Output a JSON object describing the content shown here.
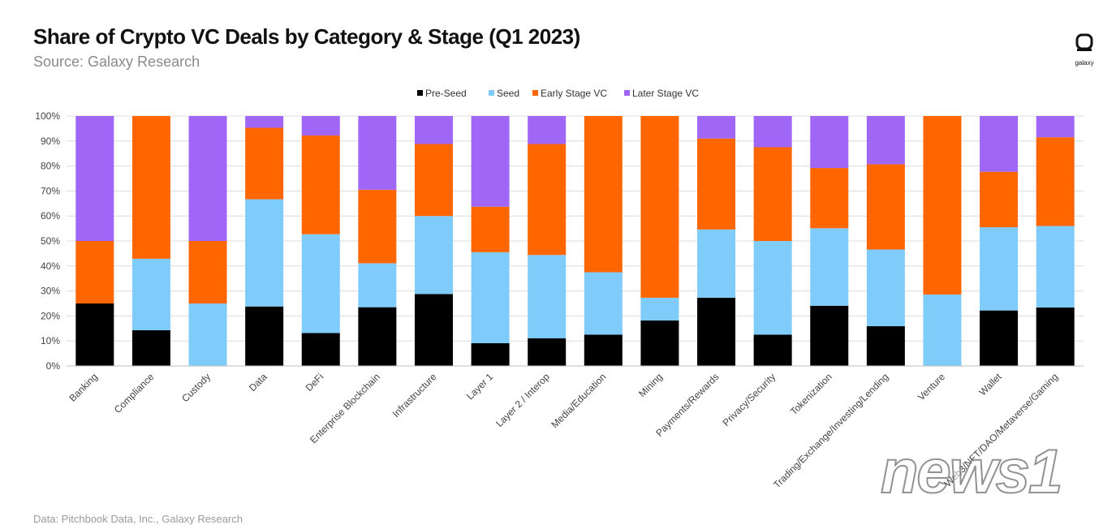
{
  "header": {
    "title": "Share of Crypto VC Deals by Category & Stage (Q1 2023)",
    "subtitle": "Source: Galaxy Research",
    "logo_text": "galaxy"
  },
  "footer": {
    "note": "Data: Pitchbook Data, Inc., Galaxy Research"
  },
  "watermark": {
    "text": "news1"
  },
  "colors": {
    "pre_seed": "#000000",
    "seed": "#7fcbfa",
    "early_stage": "#ff6600",
    "later_stage": "#a066f5",
    "grid": "#dcdcdc",
    "axis_text": "#444444"
  },
  "chart_data": {
    "type": "bar",
    "stacked": true,
    "title": "Share of Crypto VC Deals by Category & Stage (Q1 2023)",
    "xlabel": "",
    "ylabel": "",
    "ylim": [
      0,
      100
    ],
    "yticks": [
      "0%",
      "10%",
      "20%",
      "30%",
      "40%",
      "50%",
      "60%",
      "70%",
      "80%",
      "90%",
      "100%"
    ],
    "grid": true,
    "legend_position": "top-center",
    "categories": [
      "Banking",
      "Compliance",
      "Custody",
      "Data",
      "DeFi",
      "Enterprise Blockchain",
      "Infrastructure",
      "Layer 1",
      "Layer 2 / Interop",
      "Media/Education",
      "Mining",
      "Payments/Rewards",
      "Privacy/Security",
      "Tokenization",
      "Trading/Exchange/Investing/Lending",
      "Venture",
      "Wallet",
      "Web3/NFT/DAO/Metaverse/Gaming"
    ],
    "series": [
      {
        "name": "Pre-Seed",
        "values": [
          25,
          14.3,
          0,
          23.8,
          13.2,
          23.5,
          28.8,
          9.1,
          11.1,
          12.5,
          18.2,
          27.3,
          12.5,
          24.1,
          15.9,
          0,
          22.2,
          23.4
        ]
      },
      {
        "name": "Seed",
        "values": [
          0,
          28.6,
          25,
          42.9,
          39.5,
          17.6,
          31.2,
          36.4,
          33.3,
          25,
          9.1,
          27.3,
          37.5,
          31,
          30.7,
          28.6,
          33.3,
          32.6
        ]
      },
      {
        "name": "Early Stage VC",
        "values": [
          25,
          57.1,
          25,
          28.6,
          39.5,
          29.4,
          28.8,
          18.2,
          44.4,
          62.5,
          72.7,
          36.4,
          37.5,
          24.1,
          34.1,
          71.4,
          22.2,
          35.5
        ]
      },
      {
        "name": "Later Stage VC",
        "values": [
          50,
          0,
          50,
          4.7,
          7.8,
          29.5,
          11.2,
          36.3,
          11.2,
          0,
          0,
          9,
          12.5,
          20.8,
          19.3,
          0,
          22.3,
          8.5
        ]
      }
    ]
  }
}
